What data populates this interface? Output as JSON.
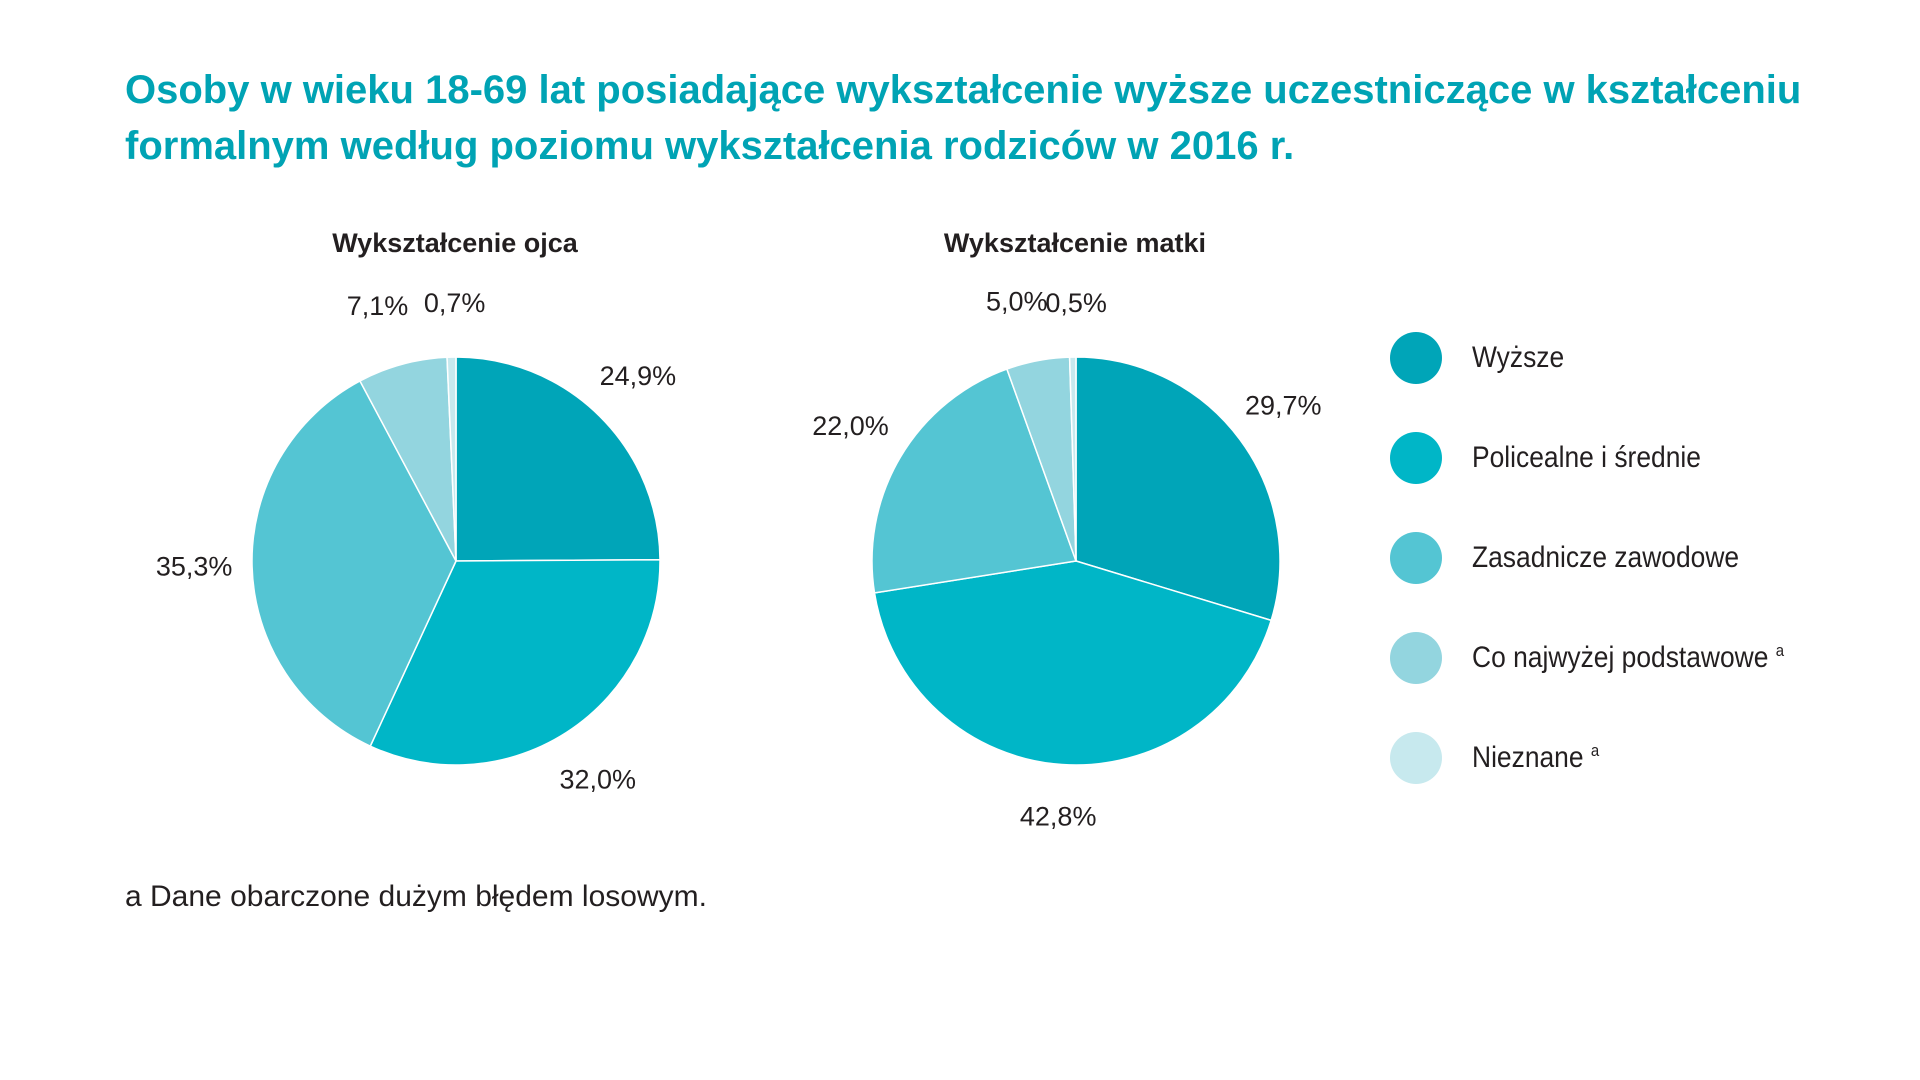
{
  "title": "Osoby w wieku 18-69 lat posiadające wykształcenie wyższe uczestniczące w kształceniu formalnym według poziomu wykształcenia rodziców w 2016 r.",
  "footnote": "a Dane obarczone dużym błędem losowym.",
  "legend": [
    {
      "label": "Wyższe",
      "sup": "",
      "color": "#00a5b8"
    },
    {
      "label": "Policealne i średnie",
      "sup": "",
      "color": "#00b6c7"
    },
    {
      "label": "Zasadnicze zawodowe",
      "sup": "",
      "color": "#54c5d3"
    },
    {
      "label": "Co najwyżej podstawowe",
      "sup": "a",
      "color": "#93d5df"
    },
    {
      "label": "Nieznane",
      "sup": "a",
      "color": "#c7e9ee"
    }
  ],
  "chart_data": [
    {
      "type": "pie",
      "title": "Wykształcenie ojca",
      "categories": [
        "Wyższe",
        "Policealne i średnie",
        "Zasadnicze zawodowe",
        "Co najwyżej podstawowe",
        "Nieznane"
      ],
      "values": [
        24.9,
        32.0,
        35.3,
        7.1,
        0.7
      ],
      "labels": [
        "24,9%",
        "32,0%",
        "35,3%",
        "7,1%",
        "0,7%"
      ]
    },
    {
      "type": "pie",
      "title": "Wykształcenie matki",
      "categories": [
        "Wyższe",
        "Policealne i średnie",
        "Zasadnicze zawodowe",
        "Co najwyżej podstawowe",
        "Nieznane"
      ],
      "values": [
        29.7,
        42.8,
        22.0,
        5.0,
        0.5
      ],
      "labels": [
        "29,7%",
        "42,8%",
        "22,0%",
        "5,0%",
        "0,5%"
      ]
    }
  ]
}
